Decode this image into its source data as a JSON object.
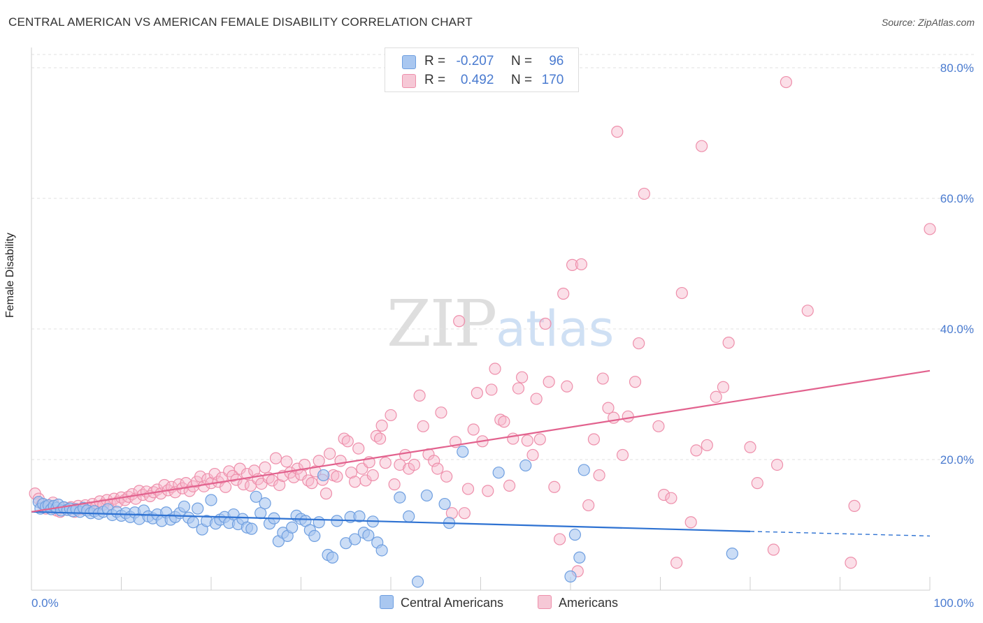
{
  "title": "CENTRAL AMERICAN VS AMERICAN FEMALE DISABILITY CORRELATION CHART",
  "source": "Source: ZipAtlas.com",
  "watermark": {
    "zip": "ZIP",
    "atlas": "atlas"
  },
  "colors": {
    "blue_fill": "#a9c7f0",
    "blue_stroke": "#6f9fe0",
    "blue_line": "#2e72d2",
    "pink_fill": "#f6b8cb",
    "pink_stroke": "#ee8fab",
    "pink_line": "#e2628e",
    "grid": "#e2e2e2",
    "axis_text": "#4a7bd0"
  },
  "legend": {
    "rows": [
      {
        "r_label": "R =",
        "r_value": "-0.207",
        "n_label": "N =",
        "n_value": "96"
      },
      {
        "r_label": "R =",
        "r_value": "0.492",
        "n_label": "N =",
        "n_value": "170"
      }
    ]
  },
  "bottom_legend": {
    "series1": "Central Americans",
    "series2": "Americans"
  },
  "chart_data": {
    "type": "scatter",
    "title": "CENTRAL AMERICAN VS AMERICAN FEMALE DISABILITY CORRELATION CHART",
    "xlabel": "",
    "ylabel": "Female Disability",
    "xlim": [
      0,
      100
    ],
    "ylim": [
      0,
      82
    ],
    "x_tick_labels": [
      "0.0%",
      "100.0%"
    ],
    "y_ticks": [
      20,
      40,
      60,
      80
    ],
    "y_tick_labels": [
      "20.0%",
      "40.0%",
      "60.0%",
      "80.0%"
    ],
    "grid": "horizontal dashed",
    "legend_position": "top-center",
    "series": [
      {
        "name": "Central Americans",
        "r": -0.207,
        "n": 96,
        "trend": {
          "x": [
            0,
            80
          ],
          "y": [
            12.0,
            9.0
          ],
          "dashed_extension": {
            "x": [
              80,
              100
            ],
            "y": [
              9.0,
              8.3
            ]
          }
        },
        "points": [
          [
            0.8,
            13.5
          ],
          [
            1.0,
            12.5
          ],
          [
            1.3,
            13.2
          ],
          [
            1.6,
            12.8
          ],
          [
            1.9,
            13.0
          ],
          [
            2.2,
            12.4
          ],
          [
            2.5,
            12.9
          ],
          [
            2.8,
            12.6
          ],
          [
            3.0,
            13.1
          ],
          [
            3.3,
            12.2
          ],
          [
            3.6,
            12.7
          ],
          [
            4.0,
            12.3
          ],
          [
            4.3,
            12.5
          ],
          [
            4.6,
            12.1
          ],
          [
            5.0,
            12.4
          ],
          [
            5.4,
            12.0
          ],
          [
            5.8,
            12.6
          ],
          [
            6.2,
            12.2
          ],
          [
            6.6,
            11.8
          ],
          [
            7.0,
            12.1
          ],
          [
            7.5,
            11.7
          ],
          [
            8.0,
            12.0
          ],
          [
            8.5,
            12.4
          ],
          [
            9.0,
            11.5
          ],
          [
            9.5,
            12.0
          ],
          [
            10.0,
            11.4
          ],
          [
            10.5,
            11.8
          ],
          [
            11.0,
            11.2
          ],
          [
            11.5,
            11.9
          ],
          [
            12.0,
            10.9
          ],
          [
            12.5,
            12.2
          ],
          [
            13.0,
            11.3
          ],
          [
            13.5,
            11.0
          ],
          [
            14.0,
            11.6
          ],
          [
            14.5,
            10.6
          ],
          [
            15.0,
            11.9
          ],
          [
            15.5,
            10.8
          ],
          [
            16.0,
            11.2
          ],
          [
            16.5,
            11.8
          ],
          [
            17.0,
            12.8
          ],
          [
            17.5,
            11.1
          ],
          [
            18.0,
            10.4
          ],
          [
            18.5,
            12.5
          ],
          [
            19.0,
            9.3
          ],
          [
            19.5,
            10.6
          ],
          [
            20.0,
            13.8
          ],
          [
            20.5,
            10.2
          ],
          [
            21.0,
            10.8
          ],
          [
            21.5,
            11.2
          ],
          [
            22.0,
            10.3
          ],
          [
            22.5,
            11.6
          ],
          [
            23.0,
            10.1
          ],
          [
            23.5,
            10.9
          ],
          [
            24.0,
            9.6
          ],
          [
            24.5,
            9.4
          ],
          [
            25.0,
            14.3
          ],
          [
            25.5,
            11.8
          ],
          [
            26.0,
            13.3
          ],
          [
            26.5,
            10.2
          ],
          [
            27.0,
            11.0
          ],
          [
            27.5,
            7.5
          ],
          [
            28.0,
            8.8
          ],
          [
            28.5,
            8.3
          ],
          [
            29.0,
            9.6
          ],
          [
            29.5,
            11.4
          ],
          [
            30.0,
            10.9
          ],
          [
            30.5,
            10.6
          ],
          [
            31.0,
            9.2
          ],
          [
            31.5,
            8.3
          ],
          [
            32.0,
            10.4
          ],
          [
            32.5,
            17.6
          ],
          [
            33.0,
            5.4
          ],
          [
            33.5,
            5.0
          ],
          [
            34.0,
            10.6
          ],
          [
            35.0,
            7.2
          ],
          [
            35.5,
            11.2
          ],
          [
            36.0,
            7.8
          ],
          [
            36.5,
            11.3
          ],
          [
            37.0,
            8.8
          ],
          [
            37.5,
            8.4
          ],
          [
            38.0,
            10.5
          ],
          [
            38.5,
            7.3
          ],
          [
            39.0,
            6.1
          ],
          [
            41.0,
            14.2
          ],
          [
            42.0,
            11.3
          ],
          [
            43.0,
            1.3
          ],
          [
            44.0,
            14.5
          ],
          [
            46.0,
            13.2
          ],
          [
            46.5,
            10.3
          ],
          [
            48.0,
            21.2
          ],
          [
            52.0,
            18.0
          ],
          [
            55.0,
            19.1
          ],
          [
            60.0,
            2.1
          ],
          [
            60.5,
            8.5
          ],
          [
            61.0,
            5.0
          ],
          [
            61.5,
            18.4
          ],
          [
            78.0,
            5.6
          ]
        ]
      },
      {
        "name": "Americans",
        "r": 0.492,
        "n": 170,
        "trend": {
          "x": [
            0,
            100
          ],
          "y": [
            12.0,
            33.6
          ]
        },
        "points": [
          [
            0.4,
            14.8
          ],
          [
            0.8,
            14.0
          ],
          [
            1.2,
            13.2
          ],
          [
            1.6,
            12.5
          ],
          [
            2.0,
            12.8
          ],
          [
            2.4,
            13.4
          ],
          [
            2.8,
            12.2
          ],
          [
            3.2,
            12.0
          ],
          [
            3.6,
            12.6
          ],
          [
            4.0,
            12.3
          ],
          [
            4.4,
            12.7
          ],
          [
            4.8,
            12.0
          ],
          [
            5.2,
            12.9
          ],
          [
            5.6,
            12.4
          ],
          [
            6.0,
            13.0
          ],
          [
            6.4,
            12.5
          ],
          [
            6.8,
            13.2
          ],
          [
            7.2,
            12.8
          ],
          [
            7.6,
            13.6
          ],
          [
            8.0,
            13.1
          ],
          [
            8.4,
            13.8
          ],
          [
            8.8,
            13.2
          ],
          [
            9.2,
            14.0
          ],
          [
            9.6,
            13.5
          ],
          [
            10.0,
            14.2
          ],
          [
            10.4,
            13.8
          ],
          [
            10.8,
            14.3
          ],
          [
            11.2,
            14.7
          ],
          [
            11.6,
            14.0
          ],
          [
            12.0,
            15.2
          ],
          [
            12.4,
            14.6
          ],
          [
            12.8,
            15.1
          ],
          [
            13.2,
            14.4
          ],
          [
            13.6,
            15.0
          ],
          [
            14.0,
            15.4
          ],
          [
            14.4,
            14.8
          ],
          [
            14.8,
            16.1
          ],
          [
            15.2,
            15.3
          ],
          [
            15.6,
            15.8
          ],
          [
            16.0,
            15.0
          ],
          [
            16.4,
            16.2
          ],
          [
            16.8,
            15.6
          ],
          [
            17.2,
            16.4
          ],
          [
            17.6,
            15.2
          ],
          [
            18.0,
            15.9
          ],
          [
            18.4,
            16.6
          ],
          [
            18.8,
            17.4
          ],
          [
            19.2,
            15.9
          ],
          [
            19.6,
            17.0
          ],
          [
            20.0,
            16.4
          ],
          [
            20.4,
            17.8
          ],
          [
            20.8,
            16.6
          ],
          [
            21.2,
            17.2
          ],
          [
            21.6,
            15.8
          ],
          [
            22.0,
            18.2
          ],
          [
            22.4,
            17.5
          ],
          [
            22.8,
            16.9
          ],
          [
            23.2,
            18.6
          ],
          [
            23.6,
            16.2
          ],
          [
            24.0,
            17.8
          ],
          [
            24.4,
            16.0
          ],
          [
            24.8,
            18.3
          ],
          [
            25.2,
            17.0
          ],
          [
            25.6,
            16.3
          ],
          [
            26.0,
            18.8
          ],
          [
            26.4,
            17.2
          ],
          [
            26.8,
            16.8
          ],
          [
            27.2,
            20.2
          ],
          [
            27.6,
            16.1
          ],
          [
            28.0,
            17.5
          ],
          [
            28.4,
            19.7
          ],
          [
            28.8,
            18.0
          ],
          [
            29.2,
            17.3
          ],
          [
            29.6,
            18.6
          ],
          [
            30.0,
            17.7
          ],
          [
            30.4,
            19.2
          ],
          [
            30.8,
            16.8
          ],
          [
            31.2,
            16.4
          ],
          [
            31.6,
            18.2
          ],
          [
            32.0,
            19.8
          ],
          [
            32.4,
            16.9
          ],
          [
            32.8,
            14.8
          ],
          [
            33.2,
            20.9
          ],
          [
            33.6,
            17.6
          ],
          [
            34.0,
            17.4
          ],
          [
            34.4,
            19.8
          ],
          [
            34.8,
            23.2
          ],
          [
            35.2,
            22.8
          ],
          [
            35.6,
            18.0
          ],
          [
            36.0,
            16.6
          ],
          [
            36.4,
            21.7
          ],
          [
            36.8,
            18.6
          ],
          [
            37.2,
            16.8
          ],
          [
            37.6,
            19.6
          ],
          [
            38.0,
            17.6
          ],
          [
            38.4,
            23.6
          ],
          [
            38.8,
            23.2
          ],
          [
            39.0,
            25.2
          ],
          [
            39.4,
            19.5
          ],
          [
            40.0,
            26.8
          ],
          [
            40.4,
            16.2
          ],
          [
            41.0,
            19.2
          ],
          [
            41.6,
            20.7
          ],
          [
            42.0,
            18.6
          ],
          [
            42.6,
            19.2
          ],
          [
            43.2,
            29.8
          ],
          [
            43.6,
            25.1
          ],
          [
            44.2,
            20.8
          ],
          [
            44.8,
            19.8
          ],
          [
            45.2,
            18.6
          ],
          [
            45.6,
            27.2
          ],
          [
            46.2,
            17.4
          ],
          [
            46.8,
            11.8
          ],
          [
            47.2,
            22.7
          ],
          [
            47.6,
            41.2
          ],
          [
            48.2,
            11.8
          ],
          [
            48.6,
            15.5
          ],
          [
            49.2,
            24.6
          ],
          [
            49.6,
            30.2
          ],
          [
            50.2,
            22.8
          ],
          [
            50.8,
            15.2
          ],
          [
            51.2,
            30.7
          ],
          [
            51.6,
            33.9
          ],
          [
            52.2,
            26.1
          ],
          [
            52.6,
            25.8
          ],
          [
            53.2,
            16.0
          ],
          [
            53.6,
            23.2
          ],
          [
            54.2,
            30.9
          ],
          [
            54.6,
            32.6
          ],
          [
            55.2,
            22.9
          ],
          [
            55.8,
            20.7
          ],
          [
            56.2,
            29.3
          ],
          [
            56.6,
            23.1
          ],
          [
            57.2,
            40.8
          ],
          [
            57.6,
            31.9
          ],
          [
            58.2,
            15.8
          ],
          [
            58.8,
            7.8
          ],
          [
            59.2,
            45.4
          ],
          [
            59.6,
            31.2
          ],
          [
            60.2,
            49.8
          ],
          [
            60.8,
            2.9
          ],
          [
            61.2,
            49.9
          ],
          [
            62.0,
            13.0
          ],
          [
            62.6,
            23.1
          ],
          [
            63.2,
            17.6
          ],
          [
            63.6,
            32.4
          ],
          [
            64.2,
            27.9
          ],
          [
            64.8,
            26.4
          ],
          [
            65.2,
            70.2
          ],
          [
            65.8,
            20.7
          ],
          [
            66.4,
            26.6
          ],
          [
            67.2,
            31.9
          ],
          [
            67.6,
            37.8
          ],
          [
            68.2,
            60.7
          ],
          [
            69.8,
            25.1
          ],
          [
            70.4,
            14.6
          ],
          [
            71.2,
            14.1
          ],
          [
            71.8,
            4.2
          ],
          [
            72.4,
            45.5
          ],
          [
            73.4,
            10.4
          ],
          [
            74.0,
            21.4
          ],
          [
            74.6,
            68.0
          ],
          [
            75.2,
            22.2
          ],
          [
            76.2,
            29.6
          ],
          [
            77.0,
            31.1
          ],
          [
            77.6,
            37.9
          ],
          [
            80.0,
            21.9
          ],
          [
            80.8,
            16.4
          ],
          [
            82.6,
            6.2
          ],
          [
            83.0,
            19.2
          ],
          [
            84.0,
            77.8
          ],
          [
            86.4,
            42.8
          ],
          [
            91.2,
            4.2
          ],
          [
            91.6,
            12.9
          ],
          [
            100.0,
            55.3
          ]
        ]
      }
    ]
  }
}
